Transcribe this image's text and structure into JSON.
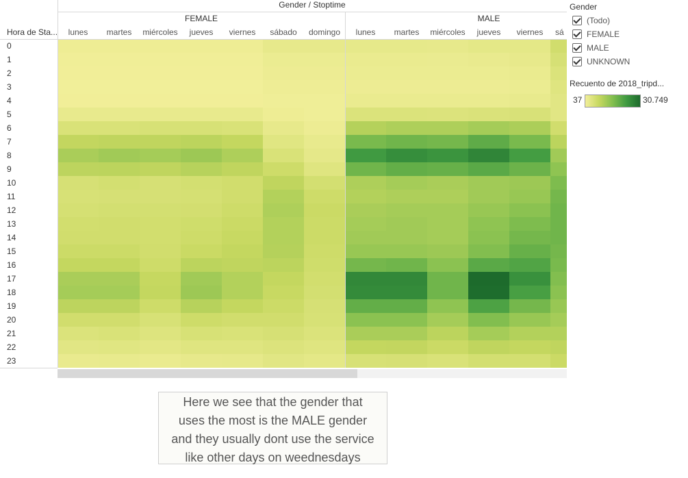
{
  "title": "Gender / Stoptime",
  "groups": [
    "FEMALE",
    "MALE"
  ],
  "row_header": "Hora de Sta...",
  "days": [
    "lunes",
    "martes",
    "miércoles",
    "jueves",
    "viernes",
    "sábado",
    "domingo"
  ],
  "male_cut_label": "sá",
  "hours": [
    "0",
    "1",
    "2",
    "3",
    "4",
    "5",
    "6",
    "7",
    "8",
    "9",
    "10",
    "11",
    "12",
    "13",
    "14",
    "15",
    "16",
    "17",
    "18",
    "19",
    "20",
    "21",
    "22",
    "23"
  ],
  "legend": {
    "filter_title": "Gender",
    "filter_items": [
      "(Todo)",
      "FEMALE",
      "MALE",
      "UNKNOWN"
    ],
    "color_title": "Recuento de 2018_tripd...",
    "min_label": "37",
    "max_label": "30.749",
    "colors": [
      "#f2ef9a",
      "#c7d860",
      "#83bf4f",
      "#3f9a41",
      "#1d6b2c"
    ]
  },
  "note": {
    "lines": [
      "Here we see that the gender that",
      "uses the most is the MALE gender",
      "and they usually dont use the service",
      "like other days on weednesdays"
    ]
  },
  "chart_data": {
    "type": "heatmap",
    "title": "Gender / Stoptime",
    "y_label": "Hora de Sta...",
    "color_scale": {
      "min": 37,
      "max": 30749,
      "min_label": "37",
      "max_label": "30.749"
    },
    "rows": [
      "0",
      "1",
      "2",
      "3",
      "4",
      "5",
      "6",
      "7",
      "8",
      "9",
      "10",
      "11",
      "12",
      "13",
      "14",
      "15",
      "16",
      "17",
      "18",
      "19",
      "20",
      "21",
      "22",
      "23"
    ],
    "series": [
      {
        "name": "FEMALE",
        "columns": [
          "lunes",
          "martes",
          "miércoles",
          "jueves",
          "viernes",
          "sábado",
          "domingo"
        ],
        "values": [
          [
            800,
            800,
            800,
            800,
            800,
            2000,
            2000
          ],
          [
            400,
            400,
            400,
            400,
            400,
            1200,
            1200
          ],
          [
            250,
            250,
            250,
            250,
            250,
            900,
            900
          ],
          [
            150,
            150,
            150,
            150,
            150,
            700,
            700
          ],
          [
            300,
            300,
            300,
            300,
            300,
            500,
            500
          ],
          [
            1800,
            1800,
            1800,
            1800,
            1800,
            800,
            500
          ],
          [
            4500,
            4500,
            4800,
            4800,
            4500,
            2000,
            1000
          ],
          [
            8200,
            8500,
            8500,
            9000,
            8000,
            3200,
            1800
          ],
          [
            11000,
            12000,
            11500,
            12500,
            10500,
            4500,
            2300
          ],
          [
            8800,
            9000,
            8500,
            9500,
            8500,
            6500,
            3500
          ],
          [
            5000,
            5500,
            5000,
            5500,
            6000,
            8500,
            5500
          ],
          [
            4800,
            5000,
            5000,
            5200,
            6000,
            10000,
            6500
          ],
          [
            5200,
            5500,
            5500,
            5600,
            6500,
            10500,
            7000
          ],
          [
            5800,
            6000,
            5800,
            6200,
            7000,
            10000,
            6800
          ],
          [
            6000,
            6000,
            5800,
            6500,
            7500,
            10000,
            6800
          ],
          [
            6800,
            6800,
            6000,
            7200,
            8000,
            9800,
            6500
          ],
          [
            8000,
            8000,
            6500,
            9000,
            8500,
            9000,
            6200
          ],
          [
            11000,
            11000,
            7800,
            12000,
            10000,
            8000,
            5800
          ],
          [
            11500,
            11500,
            8000,
            12500,
            10000,
            7500,
            5500
          ],
          [
            8800,
            8800,
            6500,
            9500,
            8000,
            6800,
            5000
          ],
          [
            6000,
            6000,
            4800,
            6500,
            6000,
            6000,
            4800
          ],
          [
            4200,
            4500,
            3800,
            4800,
            4500,
            5000,
            4200
          ],
          [
            3000,
            3200,
            2800,
            3500,
            3500,
            4000,
            3500
          ],
          [
            1600,
            1800,
            1500,
            2000,
            2200,
            3000,
            2500
          ]
        ]
      },
      {
        "name": "MALE",
        "columns": [
          "lunes",
          "martes",
          "miércoles",
          "jueves",
          "viernes",
          "sá"
        ],
        "values": [
          [
            2200,
            2200,
            2000,
            2500,
            2500,
            6000
          ],
          [
            1500,
            1500,
            1400,
            1600,
            2000,
            5000
          ],
          [
            1200,
            1200,
            1200,
            1200,
            1500,
            4200
          ],
          [
            1000,
            1000,
            1000,
            1000,
            1200,
            3500
          ],
          [
            1500,
            1500,
            1500,
            1500,
            1800,
            3000
          ],
          [
            4200,
            4200,
            4000,
            4300,
            4600,
            3000
          ],
          [
            9800,
            10500,
            10500,
            11500,
            10800,
            6000
          ],
          [
            16500,
            17500,
            17000,
            19500,
            16500,
            9000
          ],
          [
            23000,
            25000,
            24000,
            26500,
            22500,
            12000
          ],
          [
            17500,
            19000,
            18500,
            20000,
            18000,
            14000
          ],
          [
            10500,
            11500,
            11000,
            12000,
            12500,
            16000
          ],
          [
            10000,
            10500,
            10500,
            12000,
            13000,
            17000
          ],
          [
            11000,
            11500,
            11500,
            13000,
            14500,
            17500
          ],
          [
            11500,
            12000,
            11500,
            14000,
            16000,
            17500
          ],
          [
            12000,
            12000,
            11500,
            14500,
            17000,
            17500
          ],
          [
            13000,
            13000,
            12500,
            15500,
            18500,
            17000
          ],
          [
            17000,
            17500,
            14500,
            20000,
            21000,
            16500
          ],
          [
            26000,
            26000,
            17500,
            30749,
            24500,
            15500
          ],
          [
            25500,
            25500,
            17500,
            30500,
            22000,
            14500
          ],
          [
            19000,
            19000,
            14000,
            21500,
            17000,
            13000
          ],
          [
            14500,
            14500,
            11500,
            15500,
            13000,
            11500
          ],
          [
            11000,
            11000,
            9000,
            11500,
            10000,
            10000
          ],
          [
            8000,
            8200,
            7000,
            8500,
            8000,
            8500
          ],
          [
            4800,
            5000,
            4500,
            5500,
            5500,
            7000
          ]
        ]
      }
    ],
    "legend": [
      "(Todo)",
      "FEMALE",
      "MALE",
      "UNKNOWN"
    ]
  }
}
